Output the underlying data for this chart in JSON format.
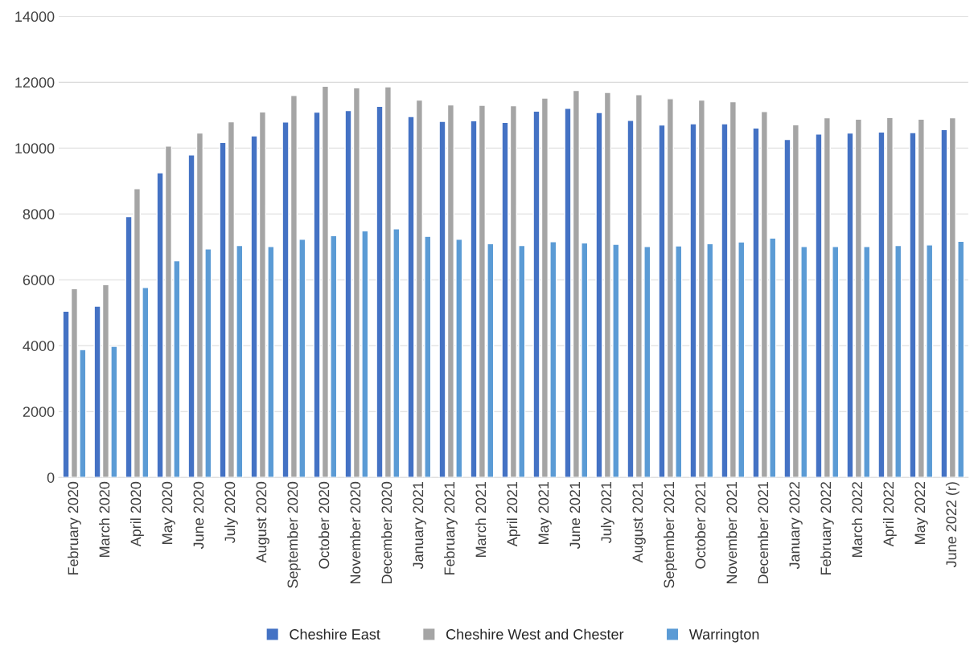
{
  "chart_data": {
    "type": "bar",
    "categories": [
      "February 2020",
      "March 2020",
      "April 2020",
      "May 2020",
      "June 2020",
      "July 2020",
      "August 2020",
      "September 2020",
      "October 2020",
      "November 2020",
      "December 2020",
      "January 2021",
      "February 2021",
      "March 2021",
      "April 2021",
      "May 2021",
      "June 2021",
      "July 2021",
      "August 2021",
      "September 2021",
      "October 2021",
      "November 2021",
      "December 2021",
      "January 2022",
      "February 2022",
      "March 2022",
      "April 2022",
      "May 2022",
      "June 2022 (r)"
    ],
    "series": [
      {
        "name": "Cheshire East",
        "color": "#4472c4",
        "values": [
          5050,
          5200,
          7920,
          9250,
          9790,
          10170,
          10370,
          10790,
          11090,
          11140,
          11270,
          10960,
          10810,
          10830,
          10780,
          11120,
          11210,
          11080,
          10840,
          10700,
          10740,
          10740,
          10610,
          10260,
          10430,
          10460,
          10490,
          10470,
          10560
        ]
      },
      {
        "name": "Cheshire West and Chester",
        "color": "#a5a5a5",
        "values": [
          5730,
          5850,
          8770,
          10060,
          10460,
          10800,
          11100,
          11600,
          11880,
          11830,
          11860,
          11460,
          11310,
          11300,
          11290,
          11520,
          11750,
          11690,
          11620,
          11500,
          11460,
          11410,
          11110,
          10710,
          10920,
          10880,
          10930,
          10880,
          10920
        ]
      },
      {
        "name": "Warrington",
        "color": "#5b9bd5",
        "values": [
          3880,
          3980,
          5770,
          6580,
          6940,
          7040,
          7010,
          7230,
          7340,
          7490,
          7550,
          7320,
          7230,
          7100,
          7040,
          7160,
          7120,
          7080,
          7010,
          7030,
          7100,
          7150,
          7270,
          7010,
          7010,
          7010,
          7040,
          7060,
          7170
        ]
      }
    ],
    "ylim": [
      0,
      14000
    ],
    "yticks": [
      0,
      2000,
      4000,
      6000,
      8000,
      10000,
      12000,
      14000
    ],
    "grid": "y",
    "legend": "bottom"
  }
}
